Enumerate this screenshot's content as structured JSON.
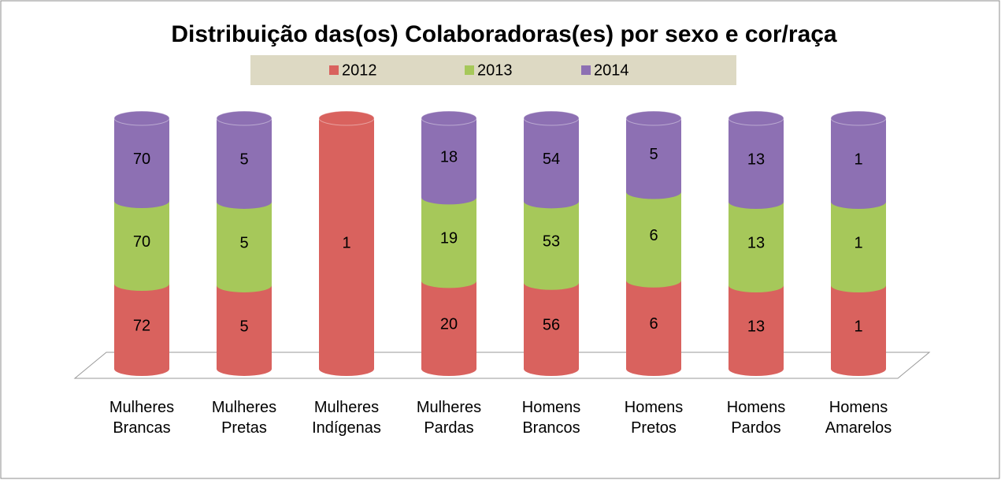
{
  "chart_data": {
    "type": "bar",
    "stacked": "percent",
    "title": "Distribuição das(os) Colaboradoras(es) por  sexo e cor/raça",
    "categories": [
      "Mulheres Brancas",
      "Mulheres Pretas",
      "Mulheres Indígenas",
      "Mulheres Pardas",
      "Homens Brancos",
      "Homens Pretos",
      "Homens Pardos",
      "Homens Amarelos"
    ],
    "series": [
      {
        "name": "2012",
        "color": "#d9625e",
        "values": [
          72,
          5,
          1,
          20,
          56,
          6,
          13,
          1
        ]
      },
      {
        "name": "2013",
        "color": "#a6c85a",
        "values": [
          70,
          5,
          null,
          19,
          53,
          6,
          13,
          1
        ]
      },
      {
        "name": "2014",
        "color": "#8d70b3",
        "values": [
          70,
          5,
          null,
          18,
          54,
          5,
          13,
          1
        ]
      }
    ],
    "legend": "top"
  }
}
